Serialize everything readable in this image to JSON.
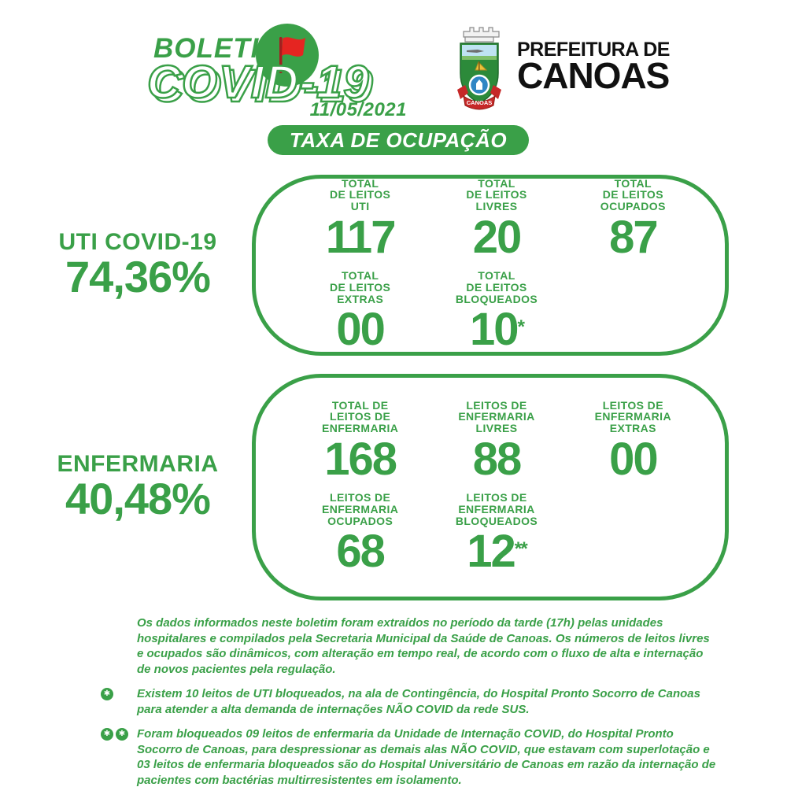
{
  "colors": {
    "green": "#3aa048",
    "red": "#e52521",
    "pole_red": "#a31f1f",
    "black": "#111111"
  },
  "header": {
    "logo": {
      "line1": "BOLETIM",
      "line2": "COVID-19",
      "date": "11/05/2021"
    },
    "prefeitura": {
      "line1": "PREFEITURA DE",
      "line2": "CANOAS",
      "crest_ribbon": "CANOAS"
    }
  },
  "banner": {
    "label": "TAXA DE OCUPAÇÃO"
  },
  "sections": [
    {
      "title": "UTI COVID-19",
      "rate": "74,36%",
      "stats": [
        {
          "label": [
            "TOTAL",
            "DE LEITOS",
            "UTI"
          ],
          "value": "117",
          "mark": ""
        },
        {
          "label": [
            "TOTAL",
            "DE LEITOS",
            "LIVRES"
          ],
          "value": "20",
          "mark": ""
        },
        {
          "label": [
            "TOTAL",
            "DE LEITOS",
            "OCUPADOS"
          ],
          "value": "87",
          "mark": ""
        },
        {
          "label": [
            "TOTAL",
            "DE LEITOS",
            "EXTRAS"
          ],
          "value": "00",
          "mark": ""
        },
        {
          "label": [
            "TOTAL",
            "DE LEITOS",
            "BLOQUEADOS"
          ],
          "value": "10",
          "mark": "*"
        }
      ]
    },
    {
      "title": "ENFERMARIA",
      "rate": "40,48%",
      "stats": [
        {
          "label": [
            "TOTAL DE",
            "LEITOS DE",
            "ENFERMARIA"
          ],
          "value": "168",
          "mark": ""
        },
        {
          "label": [
            "LEITOS DE",
            "ENFERMARIA",
            "LIVRES"
          ],
          "value": "88",
          "mark": ""
        },
        {
          "label": [
            "LEITOS DE",
            "ENFERMARIA",
            "EXTRAS"
          ],
          "value": "00",
          "mark": ""
        },
        {
          "label": [
            "LEITOS DE",
            "ENFERMARIA",
            "OCUPADOS"
          ],
          "value": "68",
          "mark": ""
        },
        {
          "label": [
            "LEITOS DE",
            "ENFERMARIA",
            "BLOQUEADOS"
          ],
          "value": "12",
          "mark": "**"
        }
      ]
    }
  ],
  "notes": [
    {
      "bullets": 0,
      "text": "Os dados informados neste boletim foram extraídos no período da tarde (17h) pelas unidades hospitalares e compilados pela Secretaria Municipal da Saúde de Canoas. Os números de leitos livres e ocupados são dinâmicos, com alteração em tempo real, de acordo com o fluxo de alta e internação de novos pacientes pela regulação."
    },
    {
      "bullets": 1,
      "text": "Existem 10 leitos de UTI bloqueados, na ala de Contingência, do Hospital Pronto Socorro de Canoas para atender a alta demanda de internações NÃO COVID da rede SUS."
    },
    {
      "bullets": 2,
      "text": "Foram bloqueados 09 leitos de enfermaria da Unidade de Internação COVID, do Hospital Pronto Socorro de Canoas, para despressionar as demais alas NÃO COVID, que estavam com superlotação e 03 leitos de enfermaria bloqueados são do Hospital Universitário de Canoas em razão da internação de pacientes com bactérias multirresistentes em isolamento."
    }
  ]
}
